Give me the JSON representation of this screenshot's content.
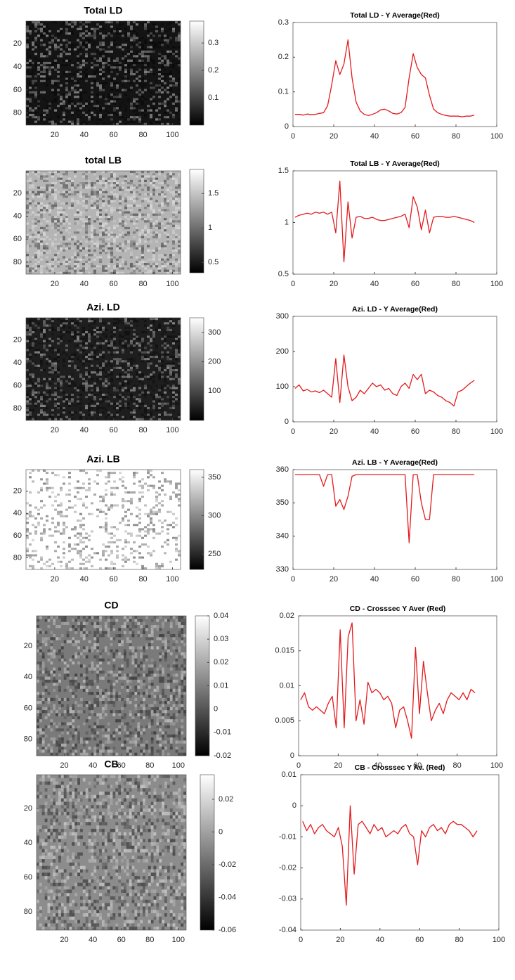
{
  "chart_data": [
    {
      "type": "heatmap",
      "title": "Total LD",
      "background": "#141414",
      "xlim": [
        0.5,
        105.5
      ],
      "ylim": [
        0.5,
        90.5
      ],
      "xticks": [
        20,
        40,
        60,
        80,
        100
      ],
      "yticks": [
        20,
        40,
        60,
        80
      ],
      "clim": [
        0,
        0.38
      ],
      "cticks": [
        0.1,
        0.2,
        0.3
      ]
    },
    {
      "type": "line",
      "title": "Total LD - Y Average(Red)",
      "color": "#e31a1c",
      "xlim": [
        0,
        100
      ],
      "xticks": [
        0,
        20,
        40,
        60,
        80,
        100
      ],
      "ylim": [
        0,
        0.3
      ],
      "yticks": [
        0,
        0.1,
        0.2,
        0.3
      ],
      "x": [
        1,
        3,
        5,
        7,
        9,
        11,
        13,
        15,
        17,
        19,
        21,
        23,
        25,
        27,
        29,
        31,
        33,
        35,
        37,
        39,
        41,
        43,
        45,
        47,
        49,
        51,
        53,
        55,
        57,
        59,
        61,
        63,
        65,
        67,
        69,
        71,
        73,
        75,
        77,
        79,
        81,
        83,
        85,
        87,
        89
      ],
      "values": [
        0.035,
        0.035,
        0.033,
        0.036,
        0.034,
        0.035,
        0.038,
        0.04,
        0.06,
        0.12,
        0.19,
        0.15,
        0.18,
        0.25,
        0.14,
        0.07,
        0.045,
        0.035,
        0.032,
        0.035,
        0.04,
        0.048,
        0.05,
        0.045,
        0.038,
        0.036,
        0.04,
        0.055,
        0.14,
        0.21,
        0.17,
        0.15,
        0.14,
        0.09,
        0.05,
        0.04,
        0.035,
        0.032,
        0.03,
        0.03,
        0.03,
        0.028,
        0.03,
        0.03,
        0.033
      ]
    },
    {
      "type": "heatmap",
      "title": "total LB",
      "background": "#b4b4b4",
      "xlim": [
        0.5,
        105.5
      ],
      "ylim": [
        0.5,
        90.5
      ],
      "xticks": [
        20,
        40,
        60,
        80,
        100
      ],
      "yticks": [
        20,
        40,
        60,
        80
      ],
      "clim": [
        0.35,
        1.85
      ],
      "cticks": [
        0.5,
        1,
        1.5
      ]
    },
    {
      "type": "line",
      "title": "Total LB - Y Average(Red)",
      "color": "#e31a1c",
      "xlim": [
        0,
        100
      ],
      "xticks": [
        0,
        20,
        40,
        60,
        80,
        100
      ],
      "ylim": [
        0.5,
        1.5
      ],
      "yticks": [
        0.5,
        1,
        1.5
      ],
      "x": [
        1,
        3,
        5,
        7,
        9,
        11,
        13,
        15,
        17,
        19,
        21,
        23,
        25,
        27,
        29,
        31,
        33,
        35,
        37,
        39,
        41,
        43,
        45,
        47,
        49,
        51,
        53,
        55,
        57,
        59,
        61,
        63,
        65,
        67,
        69,
        71,
        73,
        75,
        77,
        79,
        81,
        83,
        85,
        87,
        89
      ],
      "values": [
        1.05,
        1.07,
        1.08,
        1.09,
        1.08,
        1.1,
        1.09,
        1.1,
        1.08,
        1.1,
        0.9,
        1.4,
        0.62,
        1.2,
        0.85,
        1.05,
        1.06,
        1.04,
        1.04,
        1.05,
        1.03,
        1.02,
        1.02,
        1.03,
        1.04,
        1.05,
        1.06,
        1.08,
        0.95,
        1.25,
        1.15,
        0.93,
        1.12,
        0.9,
        1.05,
        1.06,
        1.06,
        1.05,
        1.05,
        1.06,
        1.05,
        1.04,
        1.03,
        1.02,
        1.0
      ]
    },
    {
      "type": "heatmap",
      "title": "Azi. LD",
      "background": "#1e1e1e",
      "xlim": [
        0.5,
        105.5
      ],
      "ylim": [
        0.5,
        90.5
      ],
      "xticks": [
        20,
        40,
        60,
        80,
        100
      ],
      "yticks": [
        20,
        40,
        60,
        80
      ],
      "clim": [
        0,
        350
      ],
      "cticks": [
        100,
        200,
        300
      ]
    },
    {
      "type": "line",
      "title": "Azi. LD - Y Average(Red)",
      "color": "#e31a1c",
      "xlim": [
        0,
        100
      ],
      "xticks": [
        0,
        20,
        40,
        60,
        80,
        100
      ],
      "ylim": [
        0,
        300
      ],
      "yticks": [
        0,
        100,
        200,
        300
      ],
      "x": [
        1,
        3,
        5,
        7,
        9,
        11,
        13,
        15,
        17,
        19,
        21,
        23,
        25,
        27,
        29,
        31,
        33,
        35,
        37,
        39,
        41,
        43,
        45,
        47,
        49,
        51,
        53,
        55,
        57,
        59,
        61,
        63,
        65,
        67,
        69,
        71,
        73,
        75,
        77,
        79,
        81,
        83,
        85,
        87,
        89
      ],
      "values": [
        95,
        105,
        88,
        92,
        85,
        88,
        83,
        90,
        80,
        70,
        180,
        55,
        190,
        100,
        60,
        70,
        90,
        80,
        95,
        110,
        100,
        105,
        90,
        95,
        80,
        75,
        100,
        110,
        95,
        135,
        120,
        135,
        80,
        90,
        85,
        75,
        70,
        60,
        55,
        45,
        85,
        90,
        100,
        110,
        118
      ]
    },
    {
      "type": "heatmap",
      "title": "Azi. LB",
      "background": "#ffffff",
      "xlim": [
        0.5,
        105.5
      ],
      "ylim": [
        0.5,
        90.5
      ],
      "xticks": [
        20,
        40,
        60,
        80,
        100
      ],
      "yticks": [
        20,
        40,
        60,
        80
      ],
      "clim": [
        230,
        360
      ],
      "cticks": [
        250,
        300,
        350
      ]
    },
    {
      "type": "line",
      "title": "Azi. LB - Y Average(Red)",
      "color": "#e31a1c",
      "xlim": [
        0,
        100
      ],
      "xticks": [
        0,
        20,
        40,
        60,
        80,
        100
      ],
      "ylim": [
        330,
        360
      ],
      "yticks": [
        330,
        340,
        350,
        360
      ],
      "x": [
        1,
        3,
        5,
        7,
        9,
        11,
        13,
        15,
        17,
        19,
        21,
        23,
        25,
        27,
        29,
        31,
        33,
        35,
        37,
        39,
        41,
        43,
        45,
        47,
        49,
        51,
        53,
        55,
        57,
        59,
        61,
        63,
        65,
        67,
        69,
        71,
        73,
        75,
        77,
        79,
        81,
        83,
        85,
        87,
        89
      ],
      "values": [
        358.5,
        358.5,
        358.5,
        358.5,
        358.5,
        358.5,
        358.5,
        355,
        358.5,
        358.5,
        349,
        351,
        348,
        352,
        358,
        358.5,
        358.5,
        358.5,
        358.5,
        358.5,
        358.5,
        358.5,
        358.5,
        358.5,
        358.5,
        358.5,
        358.5,
        358.5,
        338,
        358.5,
        358.5,
        350,
        345,
        345,
        358.5,
        358.5,
        358.5,
        358.5,
        358.5,
        358.5,
        358.5,
        358.5,
        358.5,
        358.5,
        358.5
      ]
    },
    {
      "type": "heatmap",
      "title": "CD",
      "background": "#7a7a7a",
      "xlim": [
        0.5,
        105.5
      ],
      "ylim": [
        0.5,
        90.5
      ],
      "xticks": [
        20,
        40,
        60,
        80,
        100
      ],
      "yticks": [
        20,
        40,
        60,
        80
      ],
      "clim": [
        -0.02,
        0.04
      ],
      "cticks": [
        -0.02,
        -0.01,
        0,
        0.01,
        0.02,
        0.03,
        0.04
      ]
    },
    {
      "type": "line",
      "title": "CD - Crosssec Y Aver (Red)",
      "color": "#e31a1c",
      "xlim": [
        0,
        100
      ],
      "xticks": [
        0,
        20,
        40,
        60,
        80,
        100
      ],
      "ylim": [
        0,
        0.02
      ],
      "yticks": [
        0,
        0.005,
        0.01,
        0.015,
        0.02
      ],
      "x": [
        1,
        3,
        5,
        7,
        9,
        11,
        13,
        15,
        17,
        19,
        21,
        23,
        25,
        27,
        29,
        31,
        33,
        35,
        37,
        39,
        41,
        43,
        45,
        47,
        49,
        51,
        53,
        55,
        57,
        59,
        61,
        63,
        65,
        67,
        69,
        71,
        73,
        75,
        77,
        79,
        81,
        83,
        85,
        87,
        89
      ],
      "values": [
        0.008,
        0.009,
        0.007,
        0.0065,
        0.007,
        0.0065,
        0.006,
        0.0075,
        0.0085,
        0.004,
        0.018,
        0.004,
        0.017,
        0.019,
        0.005,
        0.008,
        0.0045,
        0.0105,
        0.009,
        0.0095,
        0.009,
        0.008,
        0.0085,
        0.0075,
        0.004,
        0.0065,
        0.007,
        0.005,
        0.0025,
        0.0155,
        0.006,
        0.0135,
        0.009,
        0.005,
        0.0065,
        0.0075,
        0.006,
        0.008,
        0.009,
        0.0085,
        0.008,
        0.009,
        0.008,
        0.0095,
        0.009
      ]
    },
    {
      "type": "heatmap",
      "title": "CB",
      "background": "#8c8c8c",
      "xlim": [
        0.5,
        105.5
      ],
      "ylim": [
        0.5,
        90.5
      ],
      "xticks": [
        20,
        40,
        60,
        80,
        100
      ],
      "yticks": [
        20,
        40,
        60,
        80
      ],
      "clim": [
        -0.06,
        0.035
      ],
      "cticks": [
        -0.06,
        -0.04,
        -0.02,
        0,
        0.02
      ]
    },
    {
      "type": "line",
      "title": "CB - Crosssec Y Av. (Red)",
      "color": "#e31a1c",
      "xlim": [
        0,
        100
      ],
      "xticks": [
        0,
        20,
        40,
        60,
        80,
        100
      ],
      "ylim": [
        -0.04,
        0.01
      ],
      "yticks": [
        -0.04,
        -0.03,
        -0.02,
        -0.01,
        0,
        0.01
      ],
      "x": [
        1,
        3,
        5,
        7,
        9,
        11,
        13,
        15,
        17,
        19,
        21,
        23,
        25,
        27,
        29,
        31,
        33,
        35,
        37,
        39,
        41,
        43,
        45,
        47,
        49,
        51,
        53,
        55,
        57,
        59,
        61,
        63,
        65,
        67,
        69,
        71,
        73,
        75,
        77,
        79,
        81,
        83,
        85,
        87,
        89
      ],
      "values": [
        -0.005,
        -0.008,
        -0.006,
        -0.009,
        -0.007,
        -0.006,
        -0.008,
        -0.009,
        -0.01,
        -0.007,
        -0.013,
        -0.032,
        0,
        -0.022,
        -0.006,
        -0.005,
        -0.007,
        -0.009,
        -0.006,
        -0.008,
        -0.007,
        -0.01,
        -0.009,
        -0.008,
        -0.009,
        -0.007,
        -0.006,
        -0.009,
        -0.01,
        -0.019,
        -0.008,
        -0.01,
        -0.007,
        -0.006,
        -0.008,
        -0.007,
        -0.009,
        -0.006,
        -0.005,
        -0.006,
        -0.006,
        -0.007,
        -0.008,
        -0.01,
        -0.008
      ]
    }
  ]
}
